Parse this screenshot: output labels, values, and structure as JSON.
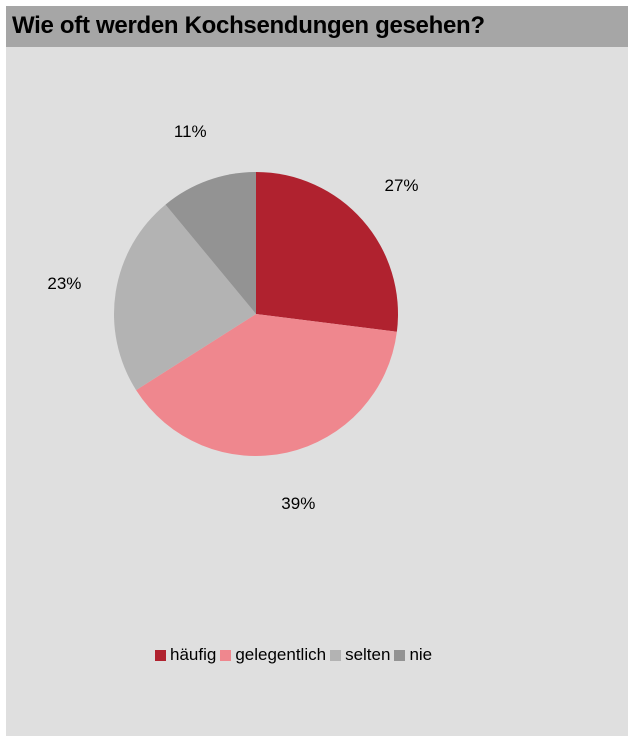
{
  "header": {
    "title": "Wie oft werden Kochsendungen gesehen?"
  },
  "chart_data": {
    "type": "pie",
    "title": "Wie oft werden Kochsendungen gesehen?",
    "slices": [
      {
        "label": "häufig",
        "value": 27,
        "value_label": "27%",
        "color": "#b0222f"
      },
      {
        "label": "gelegentlich",
        "value": 39,
        "value_label": "39%",
        "color": "#ef878e"
      },
      {
        "label": "selten",
        "value": 23,
        "value_label": "23%",
        "color": "#b3b3b3"
      },
      {
        "label": "nie",
        "value": 11,
        "value_label": "11%",
        "color": "#939393"
      }
    ],
    "legend_position": "bottom",
    "start_angle_degrees": 0,
    "direction": "clockwise"
  },
  "colors": {
    "background": "#dfdfdf",
    "title_bar": "#a6a6a6"
  }
}
